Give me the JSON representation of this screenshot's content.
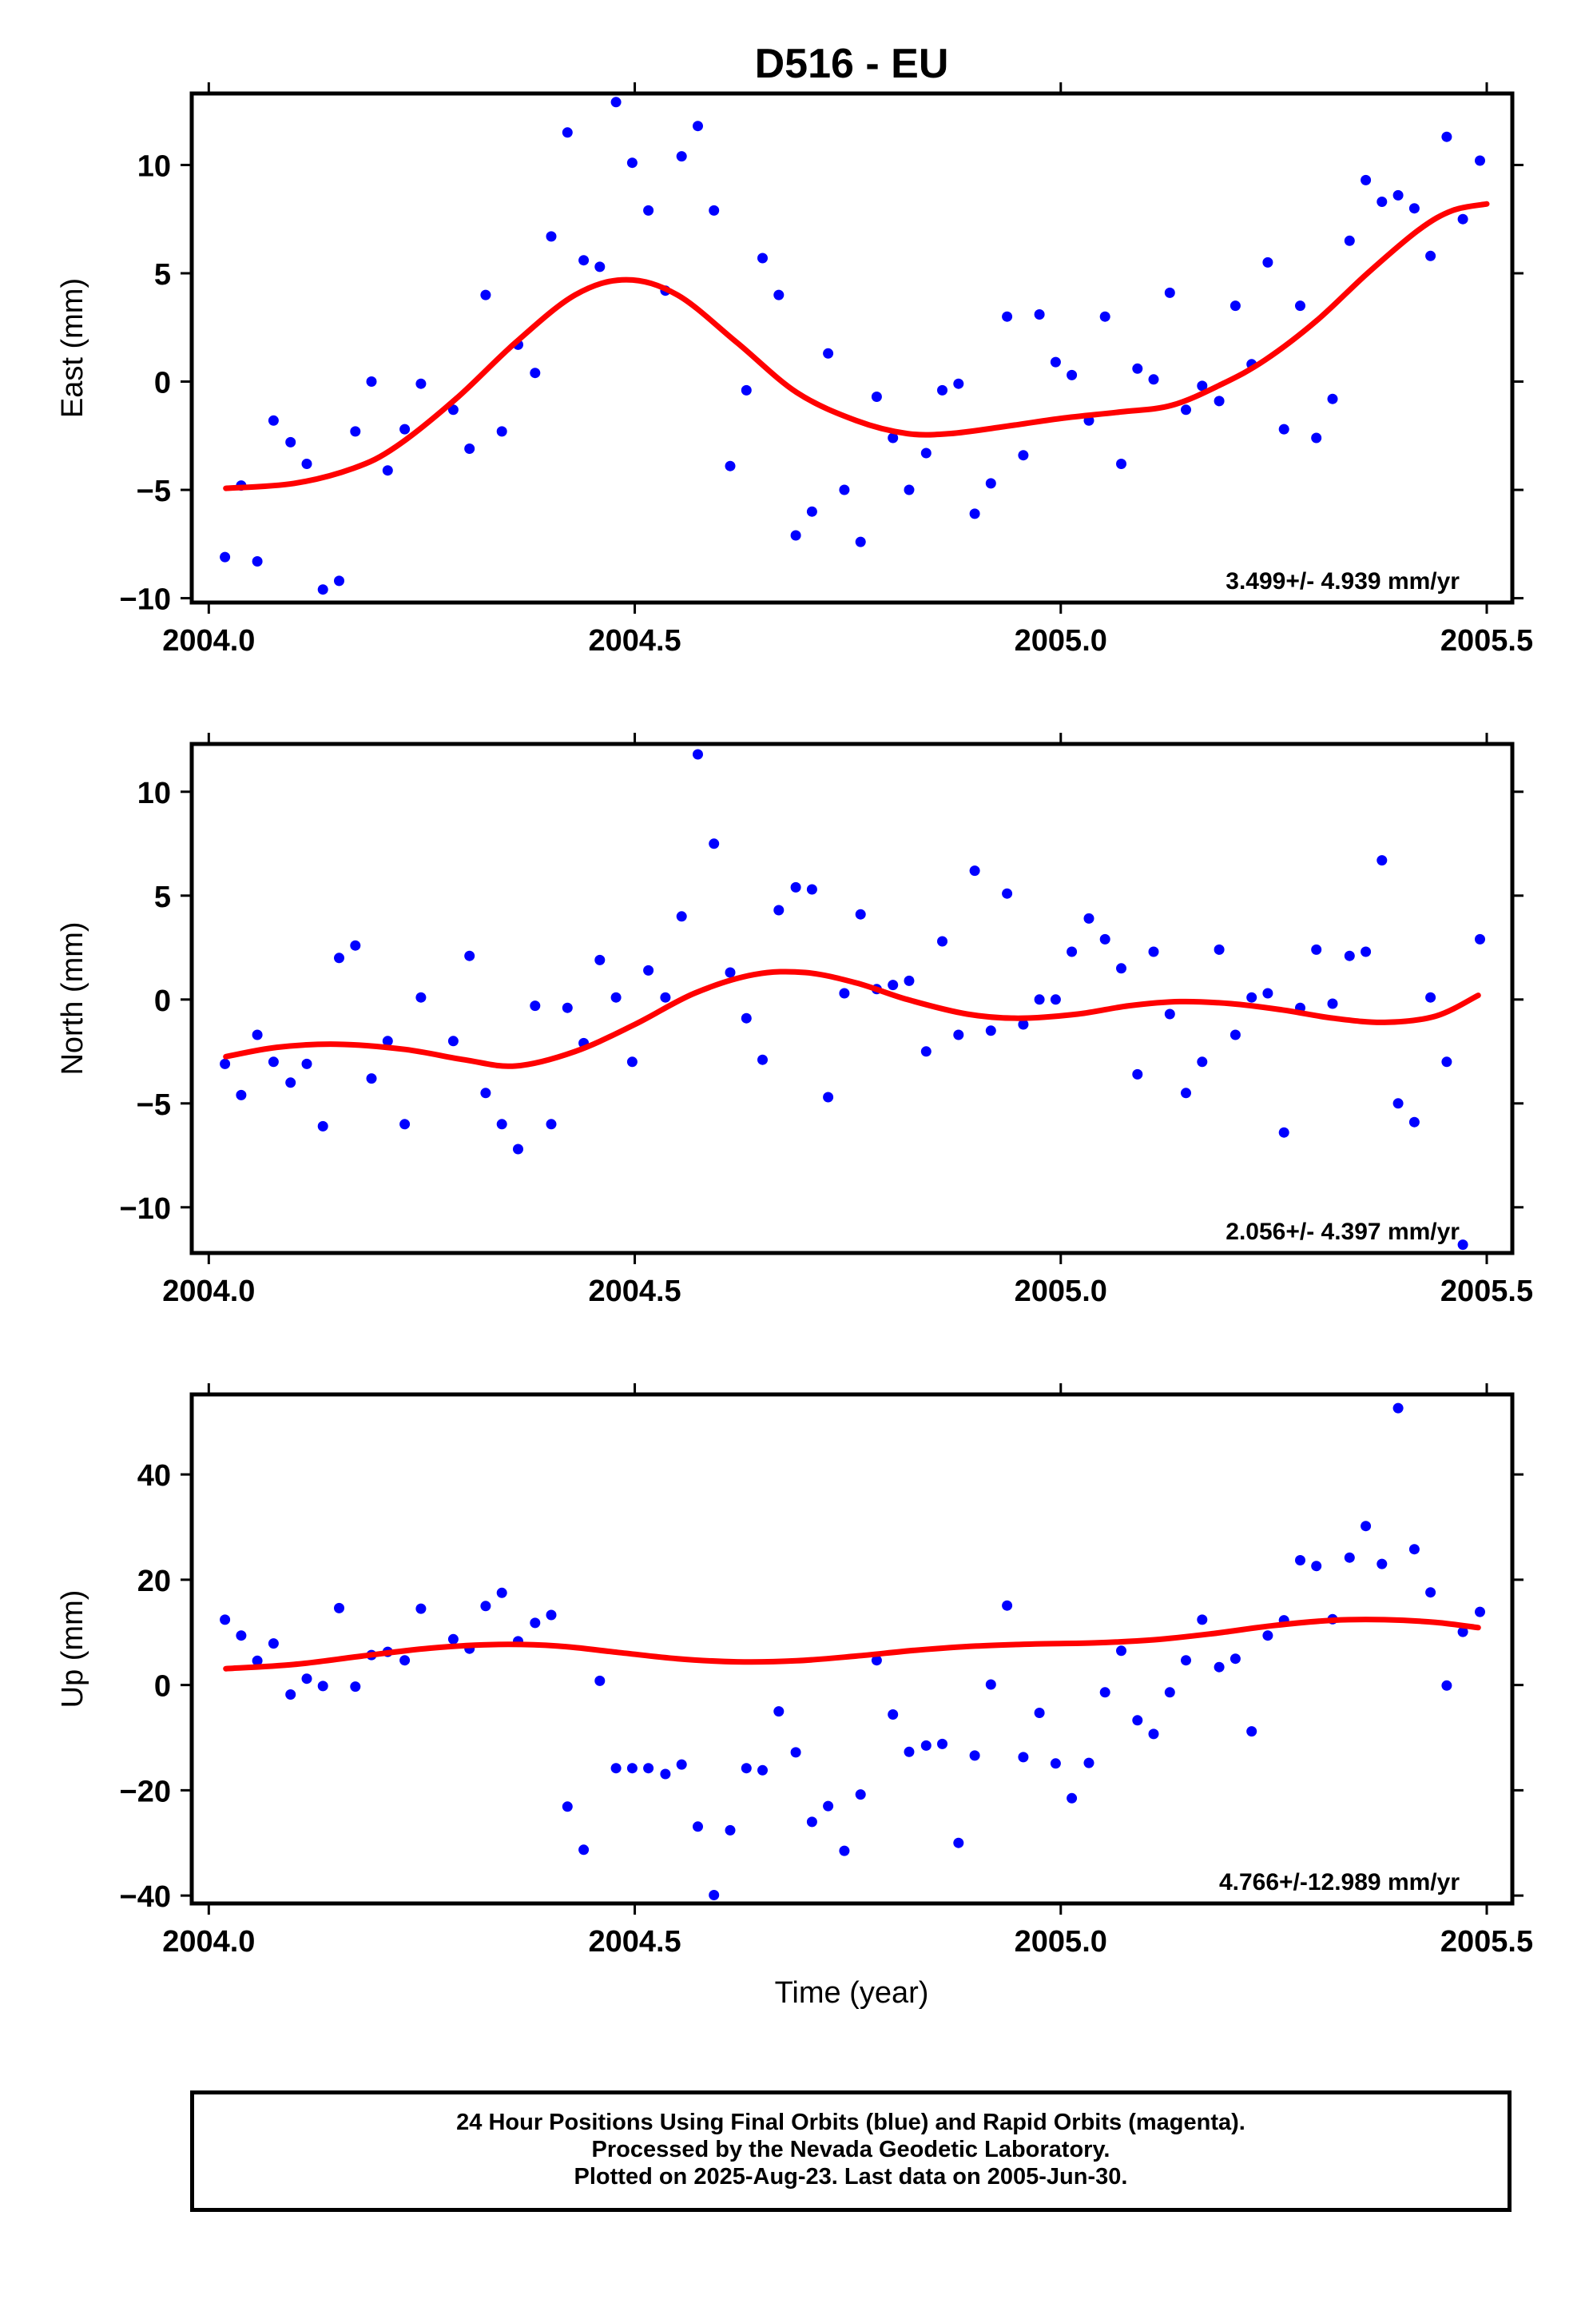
{
  "title": "D516 - EU",
  "xlabel": "Time (year)",
  "footer": {
    "line1": "24 Hour Positions Using Final Orbits (blue) and Rapid Orbits (magenta).",
    "line2": "Processed by the Nevada Geodetic Laboratory.",
    "line3": "Plotted on 2025-Aug-23. Last data on 2005-Jun-30."
  },
  "colors": {
    "points": "#0000ff",
    "fit": "#ff0000",
    "axes": "#000000"
  },
  "chart_data": [
    {
      "type": "scatter",
      "ylabel": "East (mm)",
      "rate_label": "3.499+/- 4.939 mm/yr",
      "xlim": [
        2003.98,
        2005.53
      ],
      "ylim": [
        -10.2,
        13.3
      ],
      "x_ticks": [
        2004.0,
        2004.5,
        2005.0,
        2005.5
      ],
      "x_tick_labels": [
        "2004.0",
        "2004.5",
        "2005.0",
        "2005.5"
      ],
      "y_ticks": [
        -10,
        -5,
        0,
        5,
        10
      ],
      "y_tick_labels": [
        "−10",
        "−5",
        "0",
        "5",
        "10"
      ],
      "points": [
        [
          2004.019,
          -8.1
        ],
        [
          2004.038,
          -4.8
        ],
        [
          2004.057,
          -8.3
        ],
        [
          2004.076,
          -1.8
        ],
        [
          2004.096,
          -2.8
        ],
        [
          2004.115,
          -3.8
        ],
        [
          2004.134,
          -9.6
        ],
        [
          2004.153,
          -9.2
        ],
        [
          2004.172,
          -2.3
        ],
        [
          2004.191,
          0.0
        ],
        [
          2004.21,
          -4.1
        ],
        [
          2004.23,
          -2.2
        ],
        [
          2004.249,
          -0.1
        ],
        [
          2004.287,
          -1.3
        ],
        [
          2004.306,
          -3.1
        ],
        [
          2004.325,
          4.0
        ],
        [
          2004.344,
          -2.3
        ],
        [
          2004.363,
          1.7
        ],
        [
          2004.383,
          0.4
        ],
        [
          2004.402,
          6.7
        ],
        [
          2004.421,
          11.5
        ],
        [
          2004.44,
          5.6
        ],
        [
          2004.459,
          5.3
        ],
        [
          2004.478,
          12.9
        ],
        [
          2004.497,
          10.1
        ],
        [
          2004.516,
          7.9
        ],
        [
          2004.536,
          4.2
        ],
        [
          2004.555,
          10.4
        ],
        [
          2004.574,
          11.8
        ],
        [
          2004.593,
          7.9
        ],
        [
          2004.612,
          -3.9
        ],
        [
          2004.631,
          -0.4
        ],
        [
          2004.65,
          5.7
        ],
        [
          2004.669,
          4.0
        ],
        [
          2004.689,
          -7.1
        ],
        [
          2004.708,
          -6.0
        ],
        [
          2004.727,
          1.3
        ],
        [
          2004.746,
          -5.0
        ],
        [
          2004.765,
          -7.4
        ],
        [
          2004.784,
          -0.7
        ],
        [
          2004.803,
          -2.6
        ],
        [
          2004.822,
          -5.0
        ],
        [
          2004.842,
          -3.3
        ],
        [
          2004.861,
          -0.4
        ],
        [
          2004.88,
          -0.1
        ],
        [
          2004.899,
          -6.1
        ],
        [
          2004.918,
          -4.7
        ],
        [
          2004.937,
          3.0
        ],
        [
          2004.956,
          -3.4
        ],
        [
          2004.975,
          3.1
        ],
        [
          2004.994,
          0.9
        ],
        [
          2005.013,
          0.3
        ],
        [
          2005.033,
          -1.8
        ],
        [
          2005.052,
          3.0
        ],
        [
          2005.071,
          -3.8
        ],
        [
          2005.09,
          0.6
        ],
        [
          2005.109,
          0.1
        ],
        [
          2005.128,
          4.1
        ],
        [
          2005.147,
          -1.3
        ],
        [
          2005.166,
          -0.2
        ],
        [
          2005.186,
          -0.9
        ],
        [
          2005.205,
          3.5
        ],
        [
          2005.224,
          0.8
        ],
        [
          2005.243,
          5.5
        ],
        [
          2005.262,
          -2.2
        ],
        [
          2005.281,
          3.5
        ],
        [
          2005.3,
          -2.6
        ],
        [
          2005.319,
          -0.8
        ],
        [
          2005.339,
          6.5
        ],
        [
          2005.358,
          9.3
        ],
        [
          2005.377,
          8.3
        ],
        [
          2005.396,
          8.6
        ],
        [
          2005.415,
          8.0
        ],
        [
          2005.434,
          5.8
        ],
        [
          2005.453,
          11.3
        ],
        [
          2005.472,
          7.5
        ],
        [
          2005.492,
          10.2
        ]
      ],
      "fit": [
        [
          2004.02,
          -4.93
        ],
        [
          2004.1,
          -4.7
        ],
        [
          2004.17,
          -4.0
        ],
        [
          2004.22,
          -3.0
        ],
        [
          2004.29,
          -0.8
        ],
        [
          2004.36,
          1.8
        ],
        [
          2004.43,
          4.0
        ],
        [
          2004.49,
          4.7
        ],
        [
          2004.55,
          4.0
        ],
        [
          2004.62,
          1.8
        ],
        [
          2004.69,
          -0.5
        ],
        [
          2004.76,
          -1.8
        ],
        [
          2004.82,
          -2.4
        ],
        [
          2004.87,
          -2.4
        ],
        [
          2004.93,
          -2.1
        ],
        [
          2005.0,
          -1.7
        ],
        [
          2005.07,
          -1.4
        ],
        [
          2005.13,
          -1.1
        ],
        [
          2005.19,
          -0.1
        ],
        [
          2005.24,
          1.0
        ],
        [
          2005.3,
          2.8
        ],
        [
          2005.36,
          5.0
        ],
        [
          2005.42,
          7.0
        ],
        [
          2005.46,
          7.9
        ],
        [
          2005.5,
          8.2
        ]
      ]
    },
    {
      "type": "scatter",
      "ylabel": "North (mm)",
      "rate_label": "2.056+/- 4.397 mm/yr",
      "xlim": [
        2003.98,
        2005.53
      ],
      "ylim": [
        -12.2,
        12.3
      ],
      "x_ticks": [
        2004.0,
        2004.5,
        2005.0,
        2005.5
      ],
      "x_tick_labels": [
        "2004.0",
        "2004.5",
        "2005.0",
        "2005.5"
      ],
      "y_ticks": [
        -10,
        -5,
        0,
        5,
        10
      ],
      "y_tick_labels": [
        "−10",
        "−5",
        "0",
        "5",
        "10"
      ],
      "points": [
        [
          2004.019,
          -3.1
        ],
        [
          2004.038,
          -4.6
        ],
        [
          2004.057,
          -1.7
        ],
        [
          2004.076,
          -3.0
        ],
        [
          2004.096,
          -4.0
        ],
        [
          2004.115,
          -3.1
        ],
        [
          2004.134,
          -6.1
        ],
        [
          2004.153,
          2.0
        ],
        [
          2004.172,
          2.6
        ],
        [
          2004.191,
          -3.8
        ],
        [
          2004.21,
          -2.0
        ],
        [
          2004.23,
          -6.0
        ],
        [
          2004.249,
          0.1
        ],
        [
          2004.287,
          -2.0
        ],
        [
          2004.306,
          2.1
        ],
        [
          2004.325,
          -4.5
        ],
        [
          2004.344,
          -6.0
        ],
        [
          2004.363,
          -7.2
        ],
        [
          2004.383,
          -0.3
        ],
        [
          2004.402,
          -6.0
        ],
        [
          2004.421,
          -0.4
        ],
        [
          2004.44,
          -2.1
        ],
        [
          2004.459,
          1.9
        ],
        [
          2004.478,
          0.1
        ],
        [
          2004.497,
          -3.0
        ],
        [
          2004.516,
          1.4
        ],
        [
          2004.536,
          0.1
        ],
        [
          2004.555,
          4.0
        ],
        [
          2004.574,
          11.8
        ],
        [
          2004.593,
          7.5
        ],
        [
          2004.612,
          1.3
        ],
        [
          2004.631,
          -0.9
        ],
        [
          2004.65,
          -2.9
        ],
        [
          2004.669,
          4.3
        ],
        [
          2004.689,
          5.4
        ],
        [
          2004.708,
          5.3
        ],
        [
          2004.727,
          -4.7
        ],
        [
          2004.746,
          0.3
        ],
        [
          2004.765,
          4.1
        ],
        [
          2004.784,
          0.5
        ],
        [
          2004.803,
          0.7
        ],
        [
          2004.822,
          0.9
        ],
        [
          2004.842,
          -2.5
        ],
        [
          2004.861,
          2.8
        ],
        [
          2004.88,
          -1.7
        ],
        [
          2004.899,
          6.2
        ],
        [
          2004.918,
          -1.5
        ],
        [
          2004.937,
          5.1
        ],
        [
          2004.956,
          -1.2
        ],
        [
          2004.975,
          0.0
        ],
        [
          2004.994,
          0.0
        ],
        [
          2005.013,
          2.3
        ],
        [
          2005.033,
          3.9
        ],
        [
          2005.052,
          2.9
        ],
        [
          2005.071,
          1.5
        ],
        [
          2005.09,
          -3.6
        ],
        [
          2005.109,
          2.3
        ],
        [
          2005.128,
          -0.7
        ],
        [
          2005.147,
          -4.5
        ],
        [
          2005.166,
          -3.0
        ],
        [
          2005.186,
          2.4
        ],
        [
          2005.205,
          -1.7
        ],
        [
          2005.224,
          0.1
        ],
        [
          2005.243,
          0.3
        ],
        [
          2005.262,
          -6.4
        ],
        [
          2005.281,
          -0.4
        ],
        [
          2005.3,
          2.4
        ],
        [
          2005.319,
          -0.2
        ],
        [
          2005.339,
          2.1
        ],
        [
          2005.358,
          2.3
        ],
        [
          2005.377,
          6.7
        ],
        [
          2005.396,
          -5.0
        ],
        [
          2005.415,
          -5.9
        ],
        [
          2005.434,
          0.1
        ],
        [
          2005.453,
          -3.0
        ],
        [
          2005.472,
          -11.8
        ],
        [
          2005.492,
          2.9
        ]
      ],
      "fit": [
        [
          2004.02,
          -2.75
        ],
        [
          2004.08,
          -2.3
        ],
        [
          2004.15,
          -2.15
        ],
        [
          2004.23,
          -2.4
        ],
        [
          2004.3,
          -2.9
        ],
        [
          2004.36,
          -3.2
        ],
        [
          2004.43,
          -2.5
        ],
        [
          2004.5,
          -1.2
        ],
        [
          2004.57,
          0.3
        ],
        [
          2004.64,
          1.2
        ],
        [
          2004.7,
          1.3
        ],
        [
          2004.76,
          0.8
        ],
        [
          2004.82,
          0.0
        ],
        [
          2004.89,
          -0.7
        ],
        [
          2004.95,
          -0.9
        ],
        [
          2005.02,
          -0.7
        ],
        [
          2005.08,
          -0.3
        ],
        [
          2005.14,
          -0.1
        ],
        [
          2005.2,
          -0.2
        ],
        [
          2005.26,
          -0.5
        ],
        [
          2005.32,
          -0.9
        ],
        [
          2005.38,
          -1.1
        ],
        [
          2005.44,
          -0.8
        ],
        [
          2005.49,
          0.2
        ]
      ]
    },
    {
      "type": "scatter",
      "ylabel": "Up (mm)",
      "rate_label": "4.766+/-12.989 mm/yr",
      "xlim": [
        2003.98,
        2005.53
      ],
      "ylim": [
        -41.5,
        55.2
      ],
      "x_ticks": [
        2004.0,
        2004.5,
        2005.0,
        2005.5
      ],
      "x_tick_labels": [
        "2004.0",
        "2004.5",
        "2005.0",
        "2005.5"
      ],
      "y_ticks": [
        -40,
        -20,
        0,
        20,
        40
      ],
      "y_tick_labels": [
        "−40",
        "−20",
        "0",
        "20",
        "40"
      ],
      "points": [
        [
          2004.019,
          12.4
        ],
        [
          2004.038,
          9.4
        ],
        [
          2004.057,
          4.6
        ],
        [
          2004.076,
          7.9
        ],
        [
          2004.096,
          -1.8
        ],
        [
          2004.115,
          1.2
        ],
        [
          2004.134,
          -0.2
        ],
        [
          2004.153,
          14.6
        ],
        [
          2004.172,
          -0.3
        ],
        [
          2004.191,
          5.7
        ],
        [
          2004.21,
          6.3
        ],
        [
          2004.23,
          4.7
        ],
        [
          2004.249,
          14.5
        ],
        [
          2004.287,
          8.7
        ],
        [
          2004.306,
          6.9
        ],
        [
          2004.325,
          15.0
        ],
        [
          2004.344,
          17.5
        ],
        [
          2004.363,
          8.3
        ],
        [
          2004.383,
          11.8
        ],
        [
          2004.402,
          13.3
        ],
        [
          2004.421,
          -23.1
        ],
        [
          2004.44,
          -31.3
        ],
        [
          2004.459,
          0.8
        ],
        [
          2004.478,
          -15.8
        ],
        [
          2004.497,
          -15.8
        ],
        [
          2004.516,
          -15.8
        ],
        [
          2004.536,
          -16.9
        ],
        [
          2004.555,
          -15.1
        ],
        [
          2004.574,
          -26.9
        ],
        [
          2004.593,
          -39.9
        ],
        [
          2004.612,
          -27.6
        ],
        [
          2004.631,
          -15.8
        ],
        [
          2004.65,
          -16.2
        ],
        [
          2004.669,
          -5.0
        ],
        [
          2004.689,
          -12.8
        ],
        [
          2004.708,
          -26.0
        ],
        [
          2004.727,
          -23.0
        ],
        [
          2004.746,
          -31.5
        ],
        [
          2004.765,
          -20.8
        ],
        [
          2004.784,
          4.7
        ],
        [
          2004.803,
          -5.6
        ],
        [
          2004.822,
          -12.7
        ],
        [
          2004.842,
          -11.5
        ],
        [
          2004.861,
          -11.2
        ],
        [
          2004.88,
          -30.0
        ],
        [
          2004.899,
          -13.4
        ],
        [
          2004.918,
          0.1
        ],
        [
          2004.937,
          15.1
        ],
        [
          2004.956,
          -13.7
        ],
        [
          2004.975,
          -5.3
        ],
        [
          2004.994,
          -14.9
        ],
        [
          2005.013,
          -21.5
        ],
        [
          2005.033,
          -14.8
        ],
        [
          2005.052,
          -1.4
        ],
        [
          2005.071,
          6.5
        ],
        [
          2005.09,
          -6.7
        ],
        [
          2005.109,
          -9.3
        ],
        [
          2005.128,
          -1.4
        ],
        [
          2005.147,
          4.7
        ],
        [
          2005.166,
          12.4
        ],
        [
          2005.186,
          3.4
        ],
        [
          2005.205,
          5.0
        ],
        [
          2005.224,
          -8.8
        ],
        [
          2005.243,
          9.4
        ],
        [
          2005.262,
          12.3
        ],
        [
          2005.281,
          23.7
        ],
        [
          2005.3,
          22.6
        ],
        [
          2005.319,
          12.5
        ],
        [
          2005.339,
          24.2
        ],
        [
          2005.358,
          30.2
        ],
        [
          2005.377,
          23.0
        ],
        [
          2005.396,
          52.6
        ],
        [
          2005.415,
          25.8
        ],
        [
          2005.434,
          17.6
        ],
        [
          2005.453,
          -0.1
        ],
        [
          2005.472,
          10.1
        ],
        [
          2005.492,
          13.9
        ]
      ],
      "fit": [
        [
          2004.02,
          3.1
        ],
        [
          2004.1,
          3.9
        ],
        [
          2004.18,
          5.5
        ],
        [
          2004.26,
          7.0
        ],
        [
          2004.34,
          7.7
        ],
        [
          2004.41,
          7.4
        ],
        [
          2004.48,
          6.2
        ],
        [
          2004.55,
          5.0
        ],
        [
          2004.62,
          4.4
        ],
        [
          2004.69,
          4.6
        ],
        [
          2004.76,
          5.5
        ],
        [
          2004.83,
          6.6
        ],
        [
          2004.9,
          7.4
        ],
        [
          2004.97,
          7.8
        ],
        [
          2005.04,
          8.0
        ],
        [
          2005.11,
          8.6
        ],
        [
          2005.18,
          9.8
        ],
        [
          2005.25,
          11.3
        ],
        [
          2005.32,
          12.3
        ],
        [
          2005.38,
          12.4
        ],
        [
          2005.44,
          11.9
        ],
        [
          2005.49,
          10.9
        ]
      ]
    }
  ]
}
